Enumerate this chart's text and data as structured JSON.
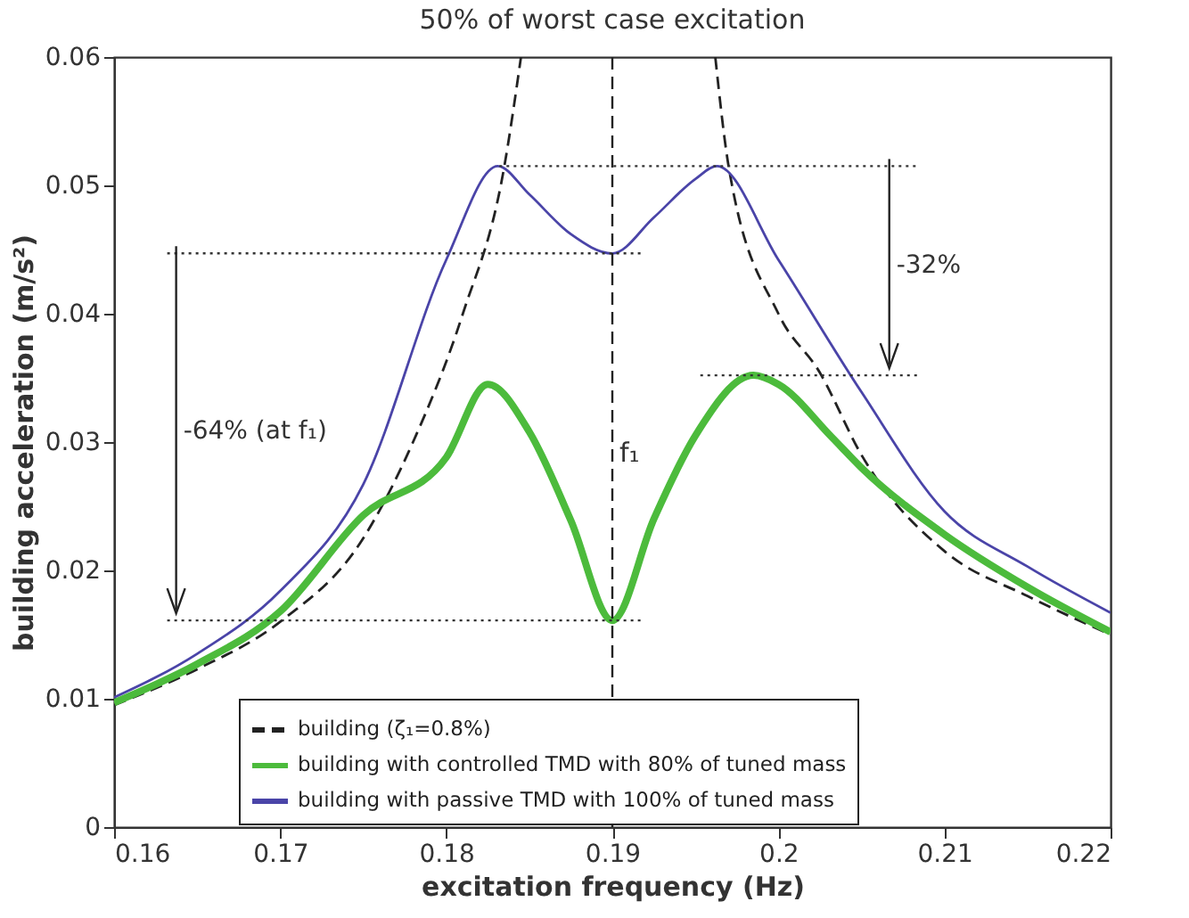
{
  "chart_data": {
    "type": "line",
    "title": "50% of worst case excitation",
    "xlabel": "excitation frequency (Hz)",
    "ylabel": "building acceleration (m/s²)",
    "xlim": [
      0.16,
      0.22
    ],
    "xticks": [
      0.16,
      0.17,
      0.18,
      0.19,
      0.2,
      0.21,
      0.22
    ],
    "ylim": [
      0,
      0.06
    ],
    "yticks": [
      0,
      0.01,
      0.02,
      0.03,
      0.04,
      0.05,
      0.06
    ],
    "grid": false,
    "legend": "bottom",
    "marker": "none",
    "series": [
      {
        "name": "building (ζ₁=0.8%)",
        "color": "#222222",
        "line_style": "dashed",
        "x": [
          0.16,
          0.165,
          0.17,
          0.175,
          0.178,
          0.181,
          0.1835,
          0.1845,
          0.19,
          0.1962,
          0.197,
          0.2,
          0.2025,
          0.205,
          0.21,
          0.215,
          0.22
        ],
        "values": [
          0.0095,
          0.0123,
          0.016,
          0.0225,
          0.03,
          0.04,
          0.0515,
          0.06,
          null,
          0.06,
          0.0515,
          0.04,
          0.0354,
          0.029,
          0.0215,
          0.018,
          0.015
        ]
      },
      {
        "name": "building with controlled TMD with 80% of tuned mass",
        "color": "#4cbb3c",
        "line_style": "solid",
        "x": [
          0.16,
          0.165,
          0.17,
          0.175,
          0.18,
          0.1825,
          0.185,
          0.1875,
          0.19,
          0.1925,
          0.195,
          0.1985,
          0.2,
          0.2032,
          0.205,
          0.21,
          0.215,
          0.22
        ],
        "values": [
          0.0097,
          0.0127,
          0.0168,
          0.0243,
          0.0288,
          0.0345,
          0.0308,
          0.0239,
          0.0161,
          0.024,
          0.0305,
          0.0352,
          0.0345,
          0.0304,
          0.028,
          0.0228,
          0.0187,
          0.0152
        ]
      },
      {
        "name": "building with passive TMD with 100% of tuned mass",
        "color": "#4a44a8",
        "line_style": "solid",
        "x": [
          0.16,
          0.165,
          0.17,
          0.175,
          0.18,
          0.1831,
          0.185,
          0.1875,
          0.19,
          0.1925,
          0.195,
          0.1963,
          0.2,
          0.205,
          0.21,
          0.215,
          0.22
        ],
        "values": [
          0.0101,
          0.0135,
          0.0184,
          0.0267,
          0.0442,
          0.0515,
          0.0493,
          0.0462,
          0.0447,
          0.0475,
          0.0505,
          0.0515,
          0.0442,
          0.0339,
          0.0246,
          0.0203,
          0.0167
        ]
      },
      {
        "color": "#333333",
        "line_style": "dotted",
        "x": [
          0.1632,
          0.1918
        ],
        "values": [
          0.0447,
          0.0447
        ]
      },
      {
        "color": "#333333",
        "line_style": "dotted",
        "x": [
          0.1632,
          0.1918
        ],
        "values": [
          0.0161,
          0.0161
        ]
      },
      {
        "color": "#333333",
        "line_style": "dotted",
        "x": [
          0.1832,
          0.2085
        ],
        "values": [
          0.0515,
          0.0515
        ]
      },
      {
        "color": "#333333",
        "line_style": "dotted",
        "x": [
          0.1953,
          0.2085
        ],
        "values": [
          0.0352,
          0.0352
        ]
      }
    ],
    "ref_lines": [
      {
        "axis": "x",
        "value": 0.19,
        "label": "f₁",
        "line_style": "dashed",
        "color": "#222222"
      }
    ],
    "annotations": [
      "-64% (at f₁)",
      "-32%"
    ]
  }
}
